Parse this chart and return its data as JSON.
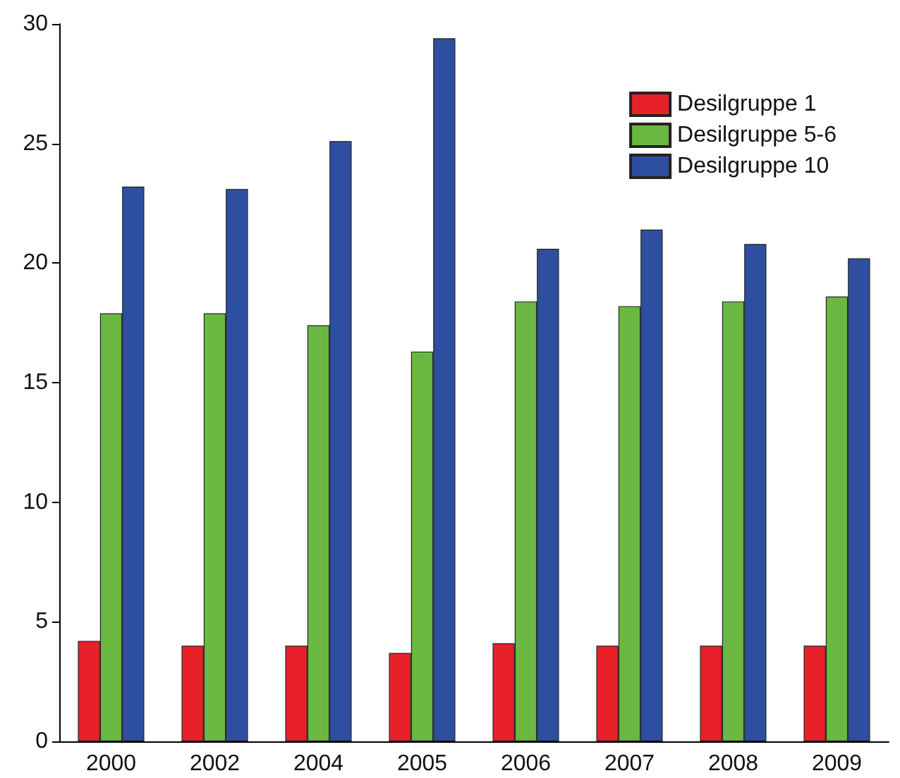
{
  "chart_data": {
    "type": "bar",
    "categories": [
      "2000",
      "2002",
      "2004",
      "2005",
      "2006",
      "2007",
      "2008",
      "2009"
    ],
    "series": [
      {
        "name": "Desilgruppe 1",
        "color": "#e8202a",
        "values": [
          4.2,
          4.0,
          4.0,
          3.7,
          4.1,
          4.0,
          4.0,
          4.0
        ]
      },
      {
        "name": "Desilgruppe 5-6",
        "color": "#6ab842",
        "values": [
          17.9,
          17.9,
          17.4,
          16.3,
          18.4,
          18.2,
          18.4,
          18.6
        ]
      },
      {
        "name": "Desilgruppe 10",
        "color": "#2e4fa0",
        "values": [
          23.2,
          23.1,
          25.1,
          29.4,
          20.6,
          21.4,
          20.8,
          20.2
        ]
      }
    ],
    "ylim": [
      0,
      30
    ],
    "yticks": [
      0,
      5,
      10,
      15,
      20,
      25,
      30
    ],
    "grid": false,
    "legend": "top right"
  }
}
